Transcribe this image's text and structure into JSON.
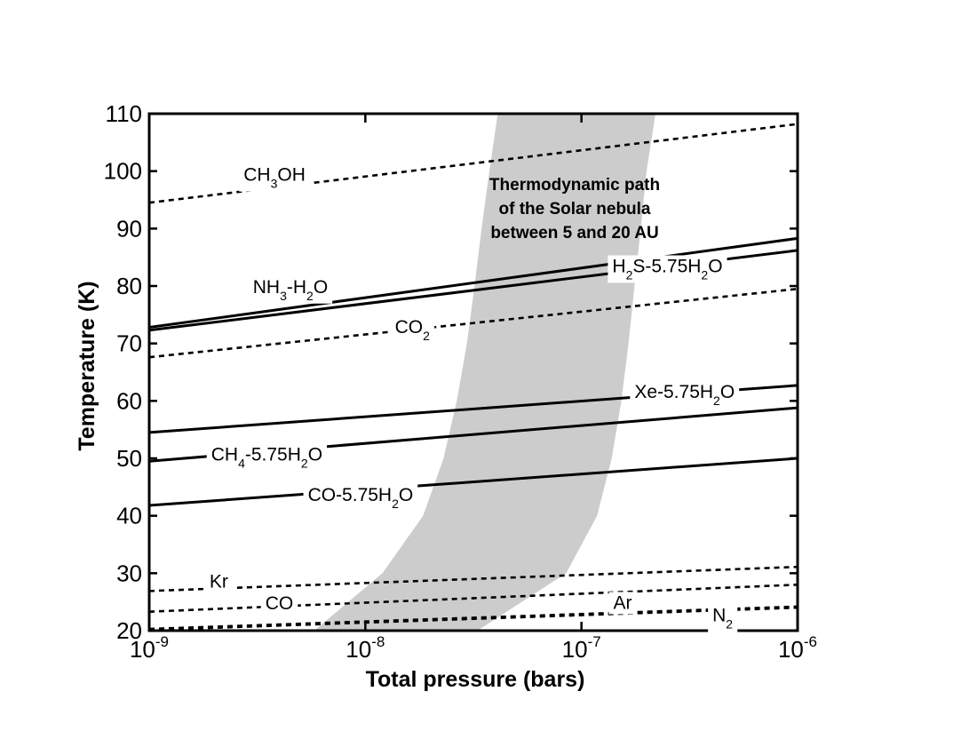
{
  "chart_data": {
    "type": "line",
    "x_scale": "log",
    "xlim": [
      1e-09,
      1e-06
    ],
    "ylim": [
      20,
      110
    ],
    "xlabel": "Total pressure (bars)",
    "ylabel": "Temperature (K)",
    "x_ticks": [
      {
        "value": 1e-09,
        "base": "10",
        "exp": "-9"
      },
      {
        "value": 1e-08,
        "base": "10",
        "exp": "-8"
      },
      {
        "value": 1e-07,
        "base": "10",
        "exp": "-7"
      },
      {
        "value": 1e-06,
        "base": "10",
        "exp": "-6"
      }
    ],
    "y_ticks": [
      20,
      30,
      40,
      50,
      60,
      70,
      80,
      90,
      100,
      110
    ],
    "grid": false,
    "band": {
      "label_lines": [
        "Thermodynamic path",
        "of the Solar nebula",
        "between 5 and 20 AU"
      ],
      "color": "#cccccc",
      "left_edge": [
        [
          5.8e-09,
          20
        ],
        [
          1.2e-08,
          30
        ],
        [
          1.85e-08,
          40
        ],
        [
          2.3e-08,
          50
        ],
        [
          2.65e-08,
          60
        ],
        [
          2.95e-08,
          70
        ],
        [
          3.2e-08,
          80
        ],
        [
          3.45e-08,
          90
        ],
        [
          3.75e-08,
          100
        ],
        [
          4.1e-08,
          110
        ]
      ],
      "right_edge": [
        [
          3.3e-08,
          20
        ],
        [
          8.5e-08,
          30
        ],
        [
          1.18e-07,
          40
        ],
        [
          1.38e-07,
          50
        ],
        [
          1.53e-07,
          60
        ],
        [
          1.65e-07,
          70
        ],
        [
          1.76e-07,
          80
        ],
        [
          1.88e-07,
          90
        ],
        [
          2e-07,
          100
        ],
        [
          2.2e-07,
          110
        ]
      ]
    },
    "series": [
      {
        "name": "CH3OH",
        "label_parts": [
          {
            "t": "CH"
          },
          {
            "t": "3",
            "sub": true
          },
          {
            "t": "OH"
          }
        ],
        "style": "dashed",
        "points": [
          [
            1e-09,
            94.5
          ],
          [
            1e-06,
            108.2
          ]
        ],
        "label_at": [
          3.8e-09,
          98.3
        ]
      },
      {
        "name": "NH3-H2O",
        "label_parts": [
          {
            "t": "NH"
          },
          {
            "t": "3",
            "sub": true
          },
          {
            "t": "-H"
          },
          {
            "t": "2",
            "sub": true
          },
          {
            "t": "O"
          }
        ],
        "style": "solid",
        "points": [
          [
            1e-09,
            72.8
          ],
          [
            1e-06,
            88.3
          ]
        ],
        "label_at": [
          4.5e-09,
          78.8
        ]
      },
      {
        "name": "H2S-5.75H2O",
        "label_parts": [
          {
            "t": "H"
          },
          {
            "t": "2",
            "sub": true
          },
          {
            "t": "S-5.75H"
          },
          {
            "t": "2",
            "sub": true
          },
          {
            "t": "O"
          }
        ],
        "style": "solid",
        "points": [
          [
            1e-09,
            72.3
          ],
          [
            1e-06,
            86.2
          ]
        ],
        "label_at": [
          2.5e-07,
          82.4
        ]
      },
      {
        "name": "CO2",
        "label_parts": [
          {
            "t": "CO"
          },
          {
            "t": "2",
            "sub": true
          }
        ],
        "style": "dashed",
        "points": [
          [
            1e-09,
            67.6
          ],
          [
            1e-06,
            79.5
          ]
        ],
        "label_at": [
          1.65e-08,
          71.8
        ]
      },
      {
        "name": "Xe-5.75H2O",
        "label_parts": [
          {
            "t": "Xe-5.75H"
          },
          {
            "t": "2",
            "sub": true
          },
          {
            "t": "O"
          }
        ],
        "style": "solid",
        "points": [
          [
            1e-09,
            54.5
          ],
          [
            1e-06,
            62.7
          ]
        ],
        "label_at": [
          3e-07,
          60.5
        ]
      },
      {
        "name": "CH4-5.75H2O",
        "label_parts": [
          {
            "t": "CH"
          },
          {
            "t": "4",
            "sub": true
          },
          {
            "t": "-5.75H"
          },
          {
            "t": "2",
            "sub": true
          },
          {
            "t": "O"
          }
        ],
        "style": "solid",
        "points": [
          [
            1e-09,
            49.5
          ],
          [
            1e-06,
            58.8
          ]
        ],
        "label_at": [
          3.5e-09,
          49.6
        ]
      },
      {
        "name": "CO-5.75H2O",
        "label_parts": [
          {
            "t": "CO-5.75H"
          },
          {
            "t": "2",
            "sub": true
          },
          {
            "t": "O"
          }
        ],
        "style": "solid",
        "points": [
          [
            1e-09,
            41.8
          ],
          [
            1e-06,
            50.0
          ]
        ],
        "label_at": [
          9.5e-09,
          42.6
        ]
      },
      {
        "name": "Kr",
        "label_parts": [
          {
            "t": "Kr"
          }
        ],
        "style": "dashed",
        "points": [
          [
            1e-09,
            26.9
          ],
          [
            1e-06,
            31.1
          ]
        ],
        "label_at": [
          2.1e-09,
          27.5
        ]
      },
      {
        "name": "CO",
        "label_parts": [
          {
            "t": "CO"
          }
        ],
        "style": "dashed",
        "points": [
          [
            1e-09,
            23.3
          ],
          [
            1e-06,
            28.0
          ]
        ],
        "label_at": [
          4e-09,
          23.7
        ]
      },
      {
        "name": "Ar",
        "label_parts": [
          {
            "t": "Ar"
          }
        ],
        "style": "dashed",
        "points": [
          [
            1e-09,
            20.3
          ],
          [
            1e-06,
            24.2
          ]
        ],
        "label_at": [
          1.55e-07,
          23.8
        ]
      },
      {
        "name": "N2",
        "label_parts": [
          {
            "t": "N"
          },
          {
            "t": "2",
            "sub": true
          }
        ],
        "style": "dashed",
        "points": [
          [
            1e-09,
            20.1
          ],
          [
            1e-06,
            24.0
          ]
        ],
        "label_at": [
          4.5e-07,
          21.6
        ]
      }
    ]
  }
}
